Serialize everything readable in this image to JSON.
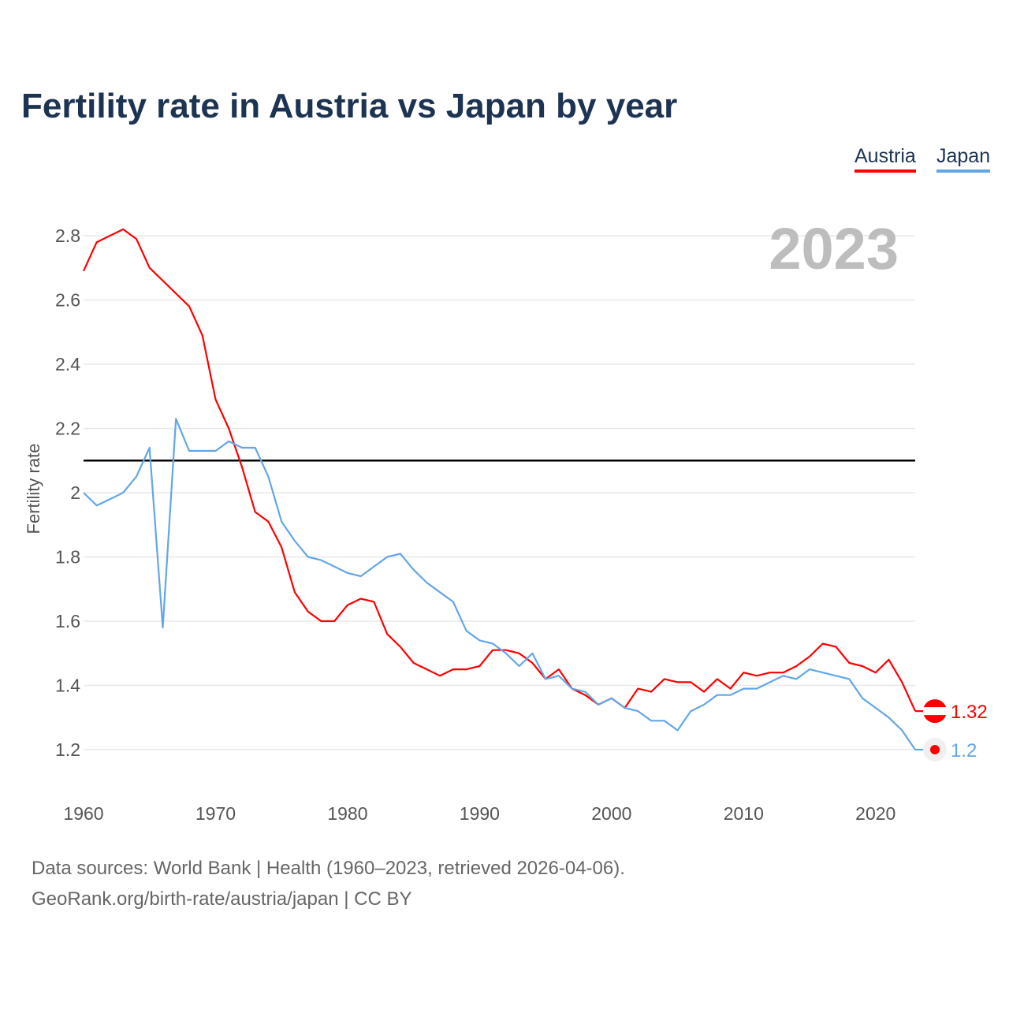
{
  "chart_data": {
    "type": "line",
    "title": "Fertility rate in Austria vs Japan by year",
    "ylabel": "Fertility rate",
    "xlabel": "",
    "ylim": [
      1.1,
      2.88
    ],
    "xlim": [
      1960,
      2023
    ],
    "yticks": [
      1.2,
      1.4,
      1.6,
      1.8,
      2,
      2.2,
      2.4,
      2.6,
      2.8
    ],
    "ytick_labels": [
      "1.2",
      "1.4",
      "1.6",
      "1.8",
      "2",
      "2.2",
      "2.4",
      "2.6",
      "2.8"
    ],
    "xticks": [
      1960,
      1970,
      1980,
      1990,
      2000,
      2010,
      2020
    ],
    "xtick_labels": [
      "1960",
      "1970",
      "1980",
      "1990",
      "2000",
      "2010",
      "2020"
    ],
    "grid": true,
    "legend_placement": "top-right",
    "reference_line": 2.1,
    "year_label": "2023",
    "x": [
      1960,
      1961,
      1962,
      1963,
      1964,
      1965,
      1966,
      1967,
      1968,
      1969,
      1970,
      1971,
      1972,
      1973,
      1974,
      1975,
      1976,
      1977,
      1978,
      1979,
      1980,
      1981,
      1982,
      1983,
      1984,
      1985,
      1986,
      1987,
      1988,
      1989,
      1990,
      1991,
      1992,
      1993,
      1994,
      1995,
      1996,
      1997,
      1998,
      1999,
      2000,
      2001,
      2002,
      2003,
      2004,
      2005,
      2006,
      2007,
      2008,
      2009,
      2010,
      2011,
      2012,
      2013,
      2014,
      2015,
      2016,
      2017,
      2018,
      2019,
      2020,
      2021,
      2022,
      2023
    ],
    "series": [
      {
        "name": "Austria",
        "color": "#ff0000",
        "end_label": "1.32",
        "values": [
          2.69,
          2.78,
          2.8,
          2.82,
          2.79,
          2.7,
          2.66,
          2.62,
          2.58,
          2.49,
          2.29,
          2.2,
          2.08,
          1.94,
          1.91,
          1.83,
          1.69,
          1.63,
          1.6,
          1.6,
          1.65,
          1.67,
          1.66,
          1.56,
          1.52,
          1.47,
          1.45,
          1.43,
          1.45,
          1.45,
          1.46,
          1.51,
          1.51,
          1.5,
          1.47,
          1.42,
          1.45,
          1.39,
          1.37,
          1.34,
          1.36,
          1.33,
          1.39,
          1.38,
          1.42,
          1.41,
          1.41,
          1.38,
          1.42,
          1.39,
          1.44,
          1.43,
          1.44,
          1.44,
          1.46,
          1.49,
          1.53,
          1.52,
          1.47,
          1.46,
          1.44,
          1.48,
          1.41,
          1.32
        ]
      },
      {
        "name": "Japan",
        "color": "#63a6e8",
        "end_label": "1.2",
        "values": [
          2.0,
          1.96,
          1.98,
          2.0,
          2.05,
          2.14,
          1.58,
          2.23,
          2.13,
          2.13,
          2.13,
          2.16,
          2.14,
          2.14,
          2.05,
          1.91,
          1.85,
          1.8,
          1.79,
          1.77,
          1.75,
          1.74,
          1.77,
          1.8,
          1.81,
          1.76,
          1.72,
          1.69,
          1.66,
          1.57,
          1.54,
          1.53,
          1.5,
          1.46,
          1.5,
          1.42,
          1.43,
          1.39,
          1.38,
          1.34,
          1.36,
          1.33,
          1.32,
          1.29,
          1.29,
          1.26,
          1.32,
          1.34,
          1.37,
          1.37,
          1.39,
          1.39,
          1.41,
          1.43,
          1.42,
          1.45,
          1.44,
          1.43,
          1.42,
          1.36,
          1.33,
          1.3,
          1.26,
          1.2
        ]
      }
    ]
  },
  "footer": {
    "source_line": "Data sources: World Bank | Health (1960–2023, retrieved 2026-04-06).",
    "url_line": "GeoRank.org/birth-rate/austria/japan | CC BY"
  }
}
